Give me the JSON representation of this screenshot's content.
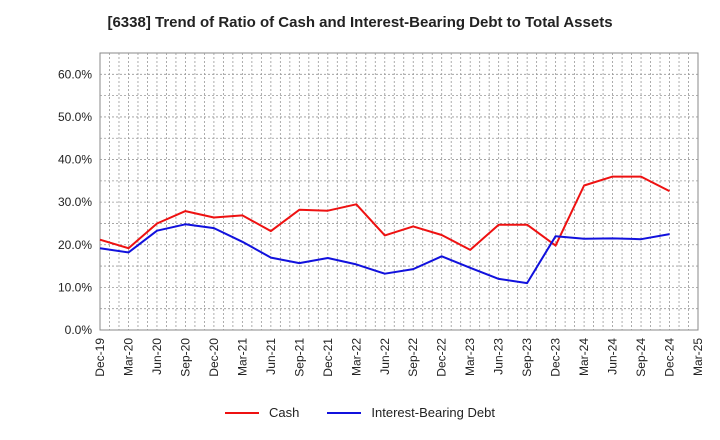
{
  "chart_data": {
    "type": "line",
    "title": "[6338]  Trend of Ratio of Cash and Interest-Bearing Debt to Total Assets",
    "xlabel": "",
    "ylabel": "",
    "ylim": [
      0,
      65
    ],
    "yticks": [
      "0.0%",
      "10.0%",
      "20.0%",
      "30.0%",
      "40.0%",
      "50.0%",
      "60.0%"
    ],
    "categories": [
      "Dec-19",
      "Mar-20",
      "Jun-20",
      "Sep-20",
      "Dec-20",
      "Mar-21",
      "Jun-21",
      "Sep-21",
      "Dec-21",
      "Mar-22",
      "Jun-22",
      "Sep-22",
      "Dec-22",
      "Mar-23",
      "Jun-23",
      "Sep-23",
      "Dec-23",
      "Mar-24",
      "Jun-24",
      "Sep-24",
      "Dec-24",
      "Mar-25"
    ],
    "grid": true,
    "legend_position": "bottom",
    "series": [
      {
        "name": "Cash",
        "color": "#ee1111",
        "values": [
          21.2,
          19.2,
          25.0,
          27.9,
          26.4,
          26.9,
          23.2,
          28.2,
          28.0,
          29.5,
          22.2,
          24.3,
          22.3,
          18.8,
          24.7,
          24.7,
          19.8,
          33.9,
          36.0,
          36.0,
          32.6,
          null
        ]
      },
      {
        "name": "Interest-Bearing Debt",
        "color": "#1111dd",
        "values": [
          19.2,
          18.2,
          23.3,
          24.8,
          23.9,
          20.7,
          17.0,
          15.7,
          16.9,
          15.4,
          13.2,
          14.3,
          17.3,
          14.6,
          12.0,
          11.0,
          22.0,
          21.4,
          21.5,
          21.3,
          22.5,
          null
        ]
      }
    ]
  }
}
